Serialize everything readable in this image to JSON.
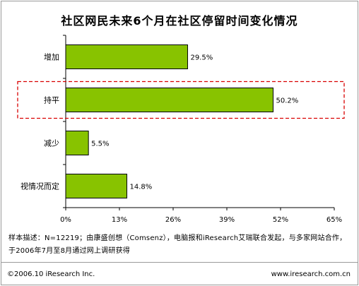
{
  "chart_data": {
    "type": "bar",
    "orientation": "horizontal",
    "title": "社区网民未来6个月在社区停留时间变化情况",
    "categories": [
      "增加",
      "持平",
      "减少",
      "视情况而定"
    ],
    "values": [
      29.5,
      50.2,
      5.5,
      14.8
    ],
    "value_labels": [
      "29.5%",
      "50.2%",
      "5.5%",
      "14.8%"
    ],
    "xlim": [
      0,
      65
    ],
    "xticks": [
      0,
      13,
      26,
      39,
      52,
      65
    ],
    "xtick_labels": [
      "0%",
      "13%",
      "26%",
      "39%",
      "52%",
      "65%"
    ],
    "highlighted_category": "持平",
    "grid": false,
    "bar_color": "#88c300",
    "bar_border_color": "#000000",
    "highlight_color": "#d90000"
  },
  "note": "样本描述：N=12219；由康盛创想（Comsenz），电脑报和iResearch艾瑞联合发起，与多家网站合作，于2006年7月至8月通过网上调研获得",
  "footer": {
    "copyright": "©2006.10 iResearch Inc.",
    "url": "www.iresearch.com.cn"
  }
}
